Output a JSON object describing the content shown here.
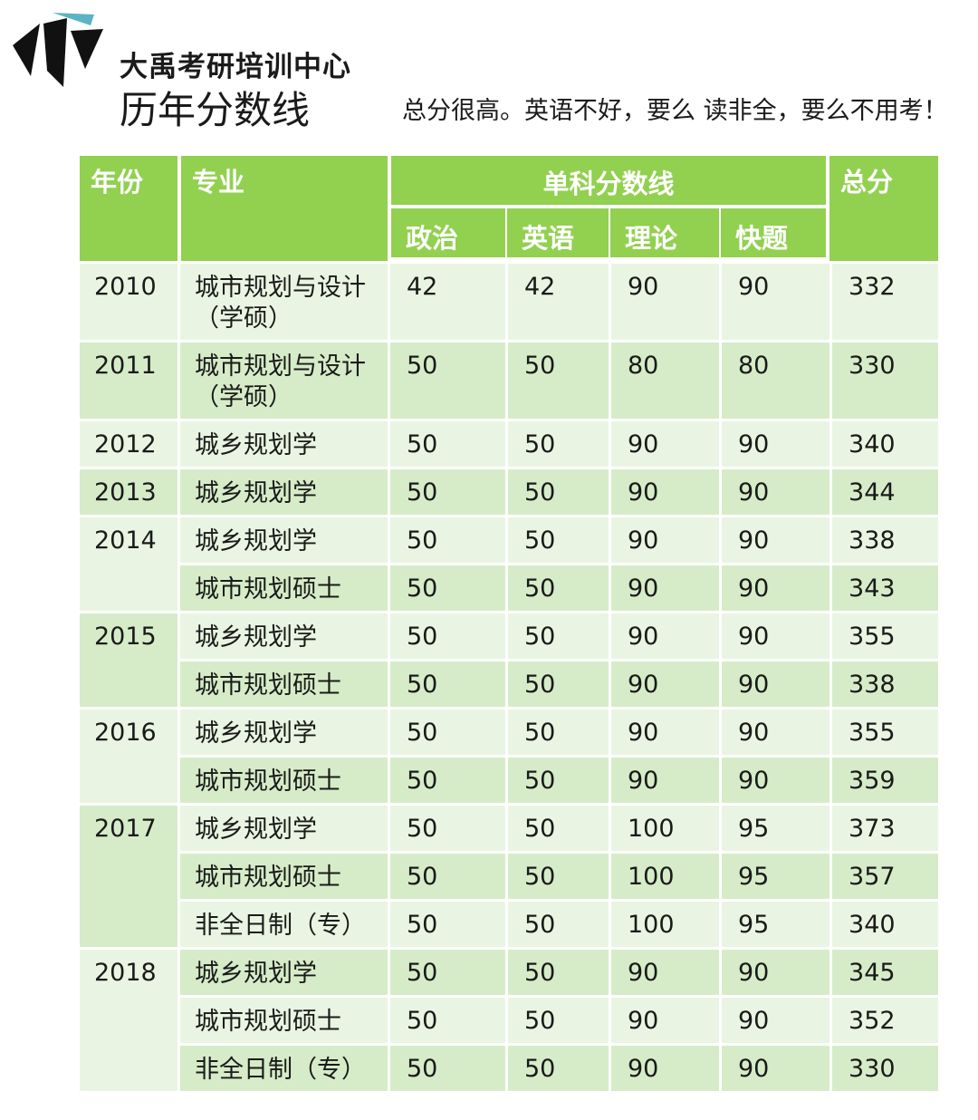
{
  "header": {
    "org_name": "大禹考研培训中心",
    "page_title": "历年分数线",
    "tagline": "总分很高。英语不好，要么 读非全，要么不用考！",
    "logo_icon": "dayu-logo-icon"
  },
  "table": {
    "headers": {
      "year": "年份",
      "major": "专业",
      "subject_group": "单科分数线",
      "politics": "政治",
      "english": "英语",
      "theory": "理论",
      "sketch": "快题",
      "total": "总分"
    },
    "groups": [
      {
        "year": "2010",
        "rows": [
          {
            "major": "城市规划与设计（学硕）",
            "politics": "42",
            "english": "42",
            "theory": "90",
            "sketch": "90",
            "total": "332"
          }
        ]
      },
      {
        "year": "2011",
        "rows": [
          {
            "major": "城市规划与设计（学硕）",
            "politics": "50",
            "english": "50",
            "theory": "80",
            "sketch": "80",
            "total": "330"
          }
        ]
      },
      {
        "year": "2012",
        "rows": [
          {
            "major": "城乡规划学",
            "politics": "50",
            "english": "50",
            "theory": "90",
            "sketch": "90",
            "total": "340"
          }
        ]
      },
      {
        "year": "2013",
        "rows": [
          {
            "major": "城乡规划学",
            "politics": "50",
            "english": "50",
            "theory": "90",
            "sketch": "90",
            "total": "344"
          }
        ]
      },
      {
        "year": "2014",
        "rows": [
          {
            "major": "城乡规划学",
            "politics": "50",
            "english": "50",
            "theory": "90",
            "sketch": "90",
            "total": "338"
          },
          {
            "major": "城市规划硕士",
            "politics": "50",
            "english": "50",
            "theory": "90",
            "sketch": "90",
            "total": "343"
          }
        ]
      },
      {
        "year": "2015",
        "rows": [
          {
            "major": "城乡规划学",
            "politics": "50",
            "english": "50",
            "theory": "90",
            "sketch": "90",
            "total": "355"
          },
          {
            "major": "城市规划硕士",
            "politics": "50",
            "english": "50",
            "theory": "90",
            "sketch": "90",
            "total": "338"
          }
        ]
      },
      {
        "year": "2016",
        "rows": [
          {
            "major": "城乡规划学",
            "politics": "50",
            "english": "50",
            "theory": "90",
            "sketch": "90",
            "total": "355"
          },
          {
            "major": "城市规划硕士",
            "politics": "50",
            "english": "50",
            "theory": "90",
            "sketch": "90",
            "total": "359"
          }
        ]
      },
      {
        "year": "2017",
        "rows": [
          {
            "major": "城乡规划学",
            "politics": "50",
            "english": "50",
            "theory": "100",
            "sketch": "95",
            "total": "373"
          },
          {
            "major": "城市规划硕士",
            "politics": "50",
            "english": "50",
            "theory": "100",
            "sketch": "95",
            "total": "357"
          },
          {
            "major": "非全日制（专）",
            "politics": "50",
            "english": "50",
            "theory": "100",
            "sketch": "95",
            "total": "340"
          }
        ]
      },
      {
        "year": "2018",
        "rows": [
          {
            "major": "城乡规划学",
            "politics": "50",
            "english": "50",
            "theory": "90",
            "sketch": "90",
            "total": "345"
          },
          {
            "major": "城市规划硕士",
            "politics": "50",
            "english": "50",
            "theory": "90",
            "sketch": "90",
            "total": "352"
          },
          {
            "major": "非全日制（专）",
            "politics": "50",
            "english": "50",
            "theory": "90",
            "sketch": "90",
            "total": "330"
          }
        ]
      }
    ]
  },
  "colors": {
    "header_green": "#92d050",
    "band_light": "#e9f5e2",
    "band_dark": "#d6ecc8",
    "logo_teal": "#5ab4c6",
    "logo_black": "#111111"
  }
}
